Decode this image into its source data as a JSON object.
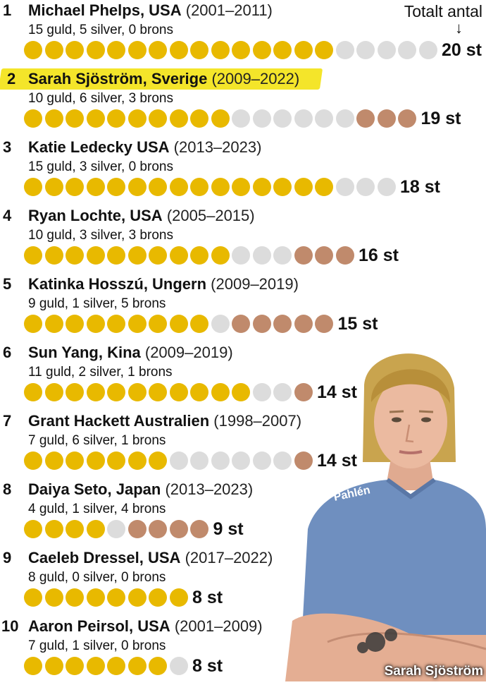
{
  "header": {
    "total_label": "Totalt antal",
    "arrow": "↓"
  },
  "caption": "Sarah Sjöström",
  "colors": {
    "gold": "#e8b900",
    "silver": "#dcdcdc",
    "bronze": "#c08a6c",
    "highlight": "#f4e52a"
  },
  "chart_data": {
    "type": "table",
    "columns": [
      "rank",
      "name",
      "years",
      "gold",
      "silver",
      "bronze",
      "total"
    ],
    "rows": [
      {
        "rank": "1",
        "name": "Michael Phelps, USA",
        "years": "(2001–2011)",
        "breakdown": "15 guld, 5 silver, 0 brons",
        "gold": 15,
        "silver": 5,
        "bronze": 0,
        "total": "20 st",
        "highlighted": false
      },
      {
        "rank": "2",
        "name": "Sarah Sjöström, Sverige",
        "years": "(2009–2022)",
        "breakdown": "10 guld, 6 silver, 3 brons",
        "gold": 10,
        "silver": 6,
        "bronze": 3,
        "total": "19 st",
        "highlighted": true
      },
      {
        "rank": "3",
        "name": "Katie Ledecky USA",
        "years": "(2013–2023)",
        "breakdown": "15 guld, 3 silver, 0 brons",
        "gold": 15,
        "silver": 3,
        "bronze": 0,
        "total": "18 st",
        "highlighted": false
      },
      {
        "rank": "4",
        "name": "Ryan Lochte, USA",
        "years": "(2005–2015)",
        "breakdown": "10 guld, 3 silver, 3 brons",
        "gold": 10,
        "silver": 3,
        "bronze": 3,
        "total": "16 st",
        "highlighted": false
      },
      {
        "rank": "5",
        "name": "Katinka Hosszú, Ungern",
        "years": "(2009–2019)",
        "breakdown": "9 guld, 1 silver, 5 brons",
        "gold": 9,
        "silver": 1,
        "bronze": 5,
        "total": "15 st",
        "highlighted": false
      },
      {
        "rank": "6",
        "name": "Sun Yang, Kina",
        "years": "(2009–2019)",
        "breakdown": "11 guld, 2 silver, 1 brons",
        "gold": 11,
        "silver": 2,
        "bronze": 1,
        "total": "14 st",
        "highlighted": false
      },
      {
        "rank": "7",
        "name": "Grant Hackett Australien",
        "years": "(1998–2007)",
        "breakdown": "7 guld, 6 silver, 1 brons",
        "gold": 7,
        "silver": 6,
        "bronze": 1,
        "total": "14 st",
        "highlighted": false
      },
      {
        "rank": "8",
        "name": "Daiya Seto, Japan",
        "years": "(2013–2023)",
        "breakdown": "4 guld, 1 silver, 4 brons",
        "gold": 4,
        "silver": 1,
        "bronze": 4,
        "total": "9 st",
        "highlighted": false
      },
      {
        "rank": "9",
        "name": "Caeleb Dressel, USA",
        "years": "(2017–2022)",
        "breakdown": "8 guld, 0 silver, 0 brons",
        "gold": 8,
        "silver": 0,
        "bronze": 0,
        "total": "8 st",
        "highlighted": false
      },
      {
        "rank": "10",
        "name": "Aaron Peirsol, USA",
        "years": "(2001–2009)",
        "breakdown": "7 guld, 1 silver, 0 brons",
        "gold": 7,
        "silver": 1,
        "bronze": 0,
        "total": "8 st",
        "highlighted": false
      }
    ]
  }
}
